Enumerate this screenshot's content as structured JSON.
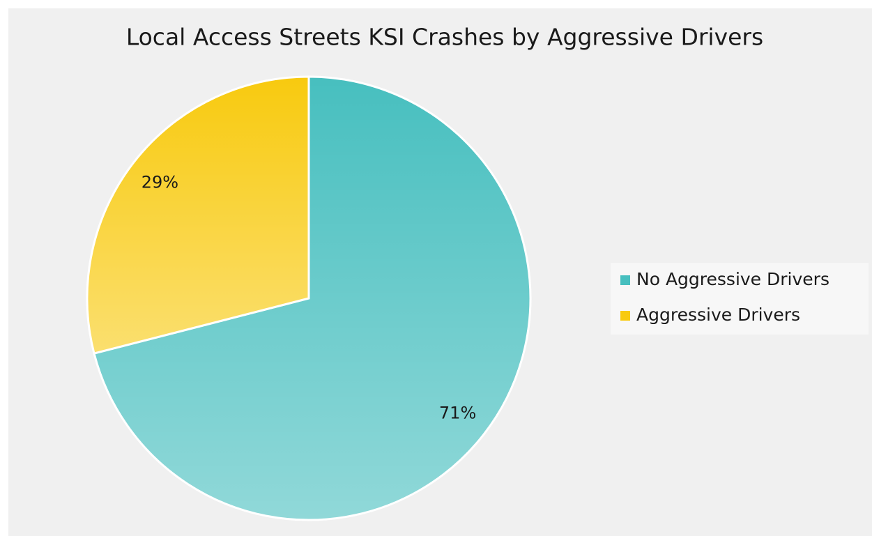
{
  "chart_data": {
    "type": "pie",
    "title": "Local Access Streets KSI Crashes by Aggressive Drivers",
    "categories": [
      "No Aggressive Drivers",
      "Aggressive Drivers"
    ],
    "values": [
      71,
      29
    ],
    "value_labels": [
      "71%",
      "29%"
    ],
    "colors": [
      "#47bfbf",
      "#f8ca0f"
    ],
    "legend": "right"
  }
}
